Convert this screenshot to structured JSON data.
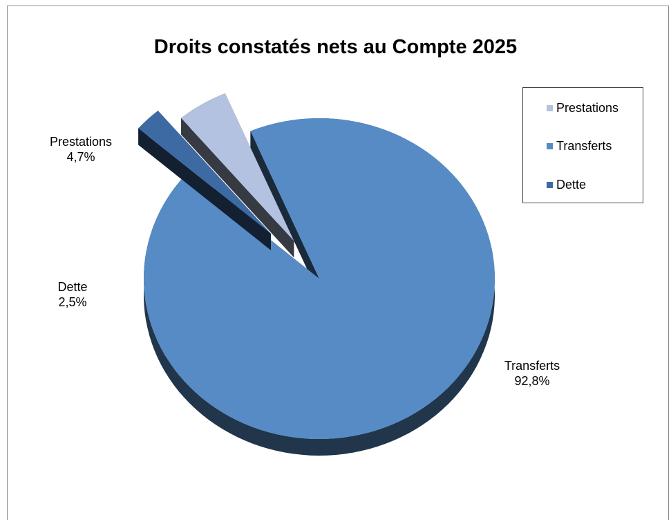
{
  "chart_data": {
    "type": "pie",
    "title": "Droits constatés nets au Compte 2025",
    "categories": [
      "Prestations",
      "Transferts",
      "Dette"
    ],
    "values": [
      4.7,
      92.8,
      2.5
    ],
    "value_labels": [
      "4,7%",
      "92,8%",
      "2,5%"
    ],
    "colors": [
      "#b3c2e0",
      "#568bc5",
      "#3e6aa4"
    ],
    "exploded": [
      "Prestations",
      "Dette"
    ],
    "three_d": true,
    "legend_position": "right"
  }
}
